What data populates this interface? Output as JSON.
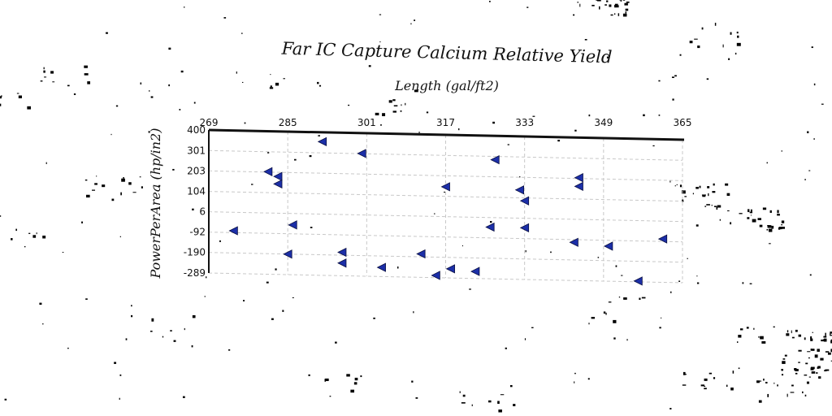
{
  "chart_data": {
    "type": "scatter",
    "title": "Far IC Capture Calcium Relative Yield",
    "xlabel": "Length (gal/ft2)",
    "ylabel": "PowerPerArea (hp/in2)",
    "x_ticks": [
      "269",
      "285",
      "301",
      "317",
      "333",
      "349",
      "365"
    ],
    "y_ticks": [
      "400",
      "301",
      "203",
      "104",
      "6",
      "-92",
      "-190",
      "-289"
    ],
    "xlim": [
      269,
      365
    ],
    "ylim": [
      -289,
      400
    ],
    "x_axis_position": "top",
    "grid": true,
    "marker": "triangle-left",
    "colors": {
      "marker": "#1c2fa8"
    },
    "points": [
      {
        "x": 274,
        "y": -83
      },
      {
        "x": 281,
        "y": 205
      },
      {
        "x": 283,
        "y": 183
      },
      {
        "x": 283,
        "y": 147
      },
      {
        "x": 285,
        "y": -190
      },
      {
        "x": 286,
        "y": -49
      },
      {
        "x": 292,
        "y": 355
      },
      {
        "x": 296,
        "y": -176
      },
      {
        "x": 296,
        "y": -228
      },
      {
        "x": 300,
        "y": 302
      },
      {
        "x": 304,
        "y": -245
      },
      {
        "x": 312,
        "y": -176
      },
      {
        "x": 315,
        "y": -278
      },
      {
        "x": 317,
        "y": 150
      },
      {
        "x": 318,
        "y": -245
      },
      {
        "x": 323,
        "y": -255
      },
      {
        "x": 326,
        "y": -40
      },
      {
        "x": 327,
        "y": 285
      },
      {
        "x": 332,
        "y": 142
      },
      {
        "x": 333,
        "y": 90
      },
      {
        "x": 333,
        "y": -40
      },
      {
        "x": 343,
        "y": -105
      },
      {
        "x": 344,
        "y": 207
      },
      {
        "x": 344,
        "y": 165
      },
      {
        "x": 350,
        "y": -120
      },
      {
        "x": 356,
        "y": -285
      },
      {
        "x": 361,
        "y": -80
      }
    ]
  }
}
